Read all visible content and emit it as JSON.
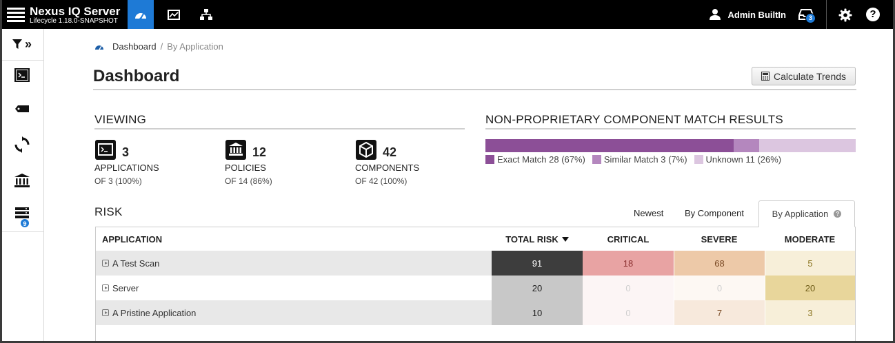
{
  "header": {
    "title": "Nexus IQ Server",
    "subtitle": "Lifecycle 1.18.0-SNAPSHOT",
    "user_name": "Admin BuiltIn",
    "notification_count": "3",
    "help_label": "?"
  },
  "sidebar": {
    "expand_label": "»",
    "badge_count": "9"
  },
  "breadcrumb": {
    "home": "Dashboard",
    "separator": "/",
    "current": "By Application"
  },
  "page": {
    "title": "Dashboard",
    "calc_button": "Calculate Trends"
  },
  "viewing": {
    "heading": "VIEWING",
    "stats": [
      {
        "count": "3",
        "label": "APPLICATIONS",
        "sub": "OF 3 (100%)"
      },
      {
        "count": "12",
        "label": "POLICIES",
        "sub": "OF 14 (86%)"
      },
      {
        "count": "42",
        "label": "COMPONENTS",
        "sub": "OF 42 (100%)"
      }
    ]
  },
  "match": {
    "heading": "NON-PROPRIETARY COMPONENT MATCH RESULTS",
    "segments": [
      {
        "label": "Exact Match 28 (67%)",
        "fraction": 0.67,
        "color": "#8c4f97"
      },
      {
        "label": "Similar Match 3 (7%)",
        "fraction": 0.07,
        "color": "#b487be"
      },
      {
        "label": "Unknown 11 (26%)",
        "fraction": 0.26,
        "color": "#dcc6e0"
      }
    ]
  },
  "risk": {
    "heading": "RISK",
    "tabs": [
      "Newest",
      "By Component",
      "By Application"
    ],
    "help_label": "?",
    "columns": {
      "application": "APPLICATION",
      "total": "TOTAL RISK",
      "critical": "CRITICAL",
      "severe": "SEVERE",
      "moderate": "MODERATE"
    },
    "rows": [
      {
        "name": "A Test Scan",
        "total": "91",
        "critical": "18",
        "severe": "68",
        "moderate": "5"
      },
      {
        "name": "Server",
        "total": "20",
        "critical": "0",
        "severe": "0",
        "moderate": "20"
      },
      {
        "name": "A Pristine Application",
        "total": "10",
        "critical": "0",
        "severe": "7",
        "moderate": "3"
      }
    ]
  },
  "colors": {
    "accent": "#1e7ad6",
    "total_high": "#3d3d3d",
    "total_low": "#c8c8c8",
    "critical": "#e8a3a3",
    "severe": "#edc9a8",
    "moderate_low": "#f7efd9",
    "moderate_high": "#e8d69b"
  }
}
